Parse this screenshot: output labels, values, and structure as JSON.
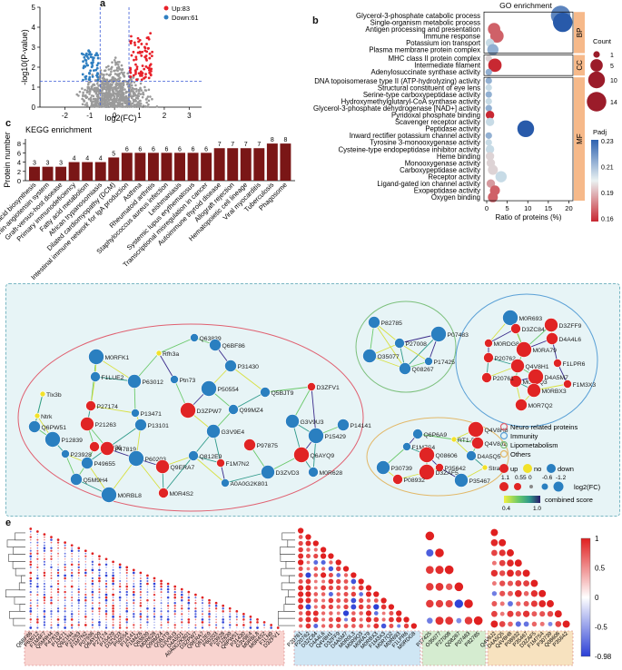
{
  "panel_letters": {
    "a": "a",
    "b": "b",
    "c": "c",
    "d": "d",
    "e": "e"
  },
  "colors": {
    "up": "#e8212a",
    "down": "#2f7fc1",
    "ns": "#9a9a9a",
    "bar": "#7a1616",
    "net_bg": "#e7f4f6",
    "neuro": "#e06070",
    "immunity": "#5aa0d6",
    "lipo": "#7cc07c",
    "others": "#e2b868",
    "up_node": "#e02424",
    "no_node": "#f2e22a",
    "down_node": "#2a7fc0"
  },
  "chart_data": [
    {
      "type": "scatter",
      "panel": "a",
      "xlabel": "log2(FC)",
      "ylabel": "-log10(P-value)",
      "xlim": [
        -3,
        3.5
      ],
      "ylim": [
        0,
        5
      ],
      "xticks": [
        -2,
        -1,
        0,
        1,
        2,
        3
      ],
      "yticks": [
        0,
        1,
        2,
        3,
        4,
        5
      ],
      "legend": [
        {
          "name": "Up:83",
          "color": "#e8212a"
        },
        {
          "name": "Down:61",
          "color": "#2f7fc1"
        }
      ],
      "thresholds": {
        "x": [
          -0.58,
          0.58
        ],
        "y": 1.3
      }
    },
    {
      "type": "bar",
      "panel": "c",
      "title": "KEGG enrichment",
      "ylabel": "Protein number",
      "ylim": [
        0,
        9
      ],
      "yticks": [
        0,
        2,
        4,
        6,
        8
      ],
      "categories": [
        "Fatty acid biosynthesis",
        "Renin-angiotensin system",
        "Graft-versus-host disease",
        "Primary immunodeficiency",
        "Fatty acid metabolism",
        "African trypanosomiasis",
        "Dilated cardiomyopathy (DCM)",
        "Intestinal immune network for IgA production",
        "Asthma",
        "Rheumatoid arthritis",
        "Staphylococcus aureus infection",
        "Leishmaniasis",
        "Systemic lupus erythematosus",
        "Transcriptional misregulation in cancer",
        "Autoimmune thyroid disease",
        "Allograft rejection",
        "Hematopoietic cell lineage",
        "Viral myocarditis",
        "Tuberculosis",
        "Phagosome"
      ],
      "values": [
        3,
        3,
        3,
        4,
        4,
        4,
        5,
        6,
        6,
        6,
        6,
        6,
        6,
        6,
        7,
        7,
        7,
        7,
        8,
        8
      ]
    },
    {
      "type": "scatter",
      "panel": "b",
      "title": "GO enrichment",
      "xlabel": "Ratio of proteins (%)",
      "xlim": [
        0,
        21
      ],
      "xticks": [
        0,
        5,
        10,
        15,
        20
      ],
      "size_legend": {
        "title": "Count",
        "values": [
          1,
          5,
          10,
          14
        ]
      },
      "color_legend": {
        "title": "Padj",
        "ticks": [
          0.23,
          0.21,
          0.19,
          0.16
        ]
      },
      "groups": [
        {
          "name": "BP",
          "terms": [
            {
              "term": "Glycerol-3-phosphate catabolic process",
              "ratio": 18.0,
              "count": 14,
              "padj": 0.22
            },
            {
              "term": "Single-organism metabolic process",
              "ratio": 18.5,
              "count": 14,
              "padj": 0.23
            },
            {
              "term": "Antigen processing and presentation",
              "ratio": 1.8,
              "count": 5,
              "padj": 0.17
            },
            {
              "term": "Immune response",
              "ratio": 2.5,
              "count": 6,
              "padj": 0.17
            },
            {
              "term": "Potassium ion transport",
              "ratio": 0.8,
              "count": 2,
              "padj": 0.2
            },
            {
              "term": "Plasma membrane protein complex",
              "ratio": 1.5,
              "count": 4,
              "padj": 0.21
            }
          ]
        },
        {
          "name": "CC",
          "terms": [
            {
              "term": "MHC class II protein complex",
              "ratio": 0.5,
              "count": 1,
              "padj": 0.19
            },
            {
              "term": "Intermediate filament",
              "ratio": 2.0,
              "count": 6,
              "padj": 0.16
            },
            {
              "term": "Adenylosuccinate synthase activity",
              "ratio": 0.5,
              "count": 1,
              "padj": 0.21
            }
          ]
        },
        {
          "name": "MF",
          "terms": [
            {
              "term": "DNA topoisomerase type II (ATP-hydrolyzing) activity",
              "ratio": 0.5,
              "count": 1,
              "padj": 0.21
            },
            {
              "term": "Structural constituent of eye lens",
              "ratio": 0.5,
              "count": 1,
              "padj": 0.2
            },
            {
              "term": "Serine-type carboxypeptidase activity",
              "ratio": 0.5,
              "count": 1,
              "padj": 0.21
            },
            {
              "term": "Hydroxymethylglutaryl-CoA synthase activity",
              "ratio": 0.5,
              "count": 1,
              "padj": 0.2
            },
            {
              "term": "Glycerol-3-phosphate dehydrogenase [NAD+] activity",
              "ratio": 0.5,
              "count": 1,
              "padj": 0.21
            },
            {
              "term": "Pyridoxal phosphate binding",
              "ratio": 0.8,
              "count": 2,
              "padj": 0.16
            },
            {
              "term": "Scavenger receptor activity",
              "ratio": 0.8,
              "count": 2,
              "padj": 0.2
            },
            {
              "term": "Peptidase activity",
              "ratio": 9.5,
              "count": 10,
              "padj": 0.23
            },
            {
              "term": "Inward rectifier potassium channel activity",
              "ratio": 0.5,
              "count": 1,
              "padj": 0.21
            },
            {
              "term": "Tyrosine 3-monooxygenase activity",
              "ratio": 0.5,
              "count": 1,
              "padj": 0.2
            },
            {
              "term": "Cysteine-type endopeptidase inhibitor activity",
              "ratio": 0.8,
              "count": 2,
              "padj": 0.2
            },
            {
              "term": "Heme binding",
              "ratio": 0.8,
              "count": 2,
              "padj": 0.19
            },
            {
              "term": "Monooxygenase activity",
              "ratio": 1.0,
              "count": 2,
              "padj": 0.19
            },
            {
              "term": "Carboxypeptidase activity",
              "ratio": 1.5,
              "count": 3,
              "padj": 0.19
            },
            {
              "term": "Receptor activity",
              "ratio": 3.5,
              "count": 4,
              "padj": 0.2
            },
            {
              "term": "Ligand-gated ion channel activity",
              "ratio": 1.0,
              "count": 2,
              "padj": 0.18
            },
            {
              "term": "Exopeptidase activity",
              "ratio": 2.0,
              "count": 3,
              "padj": 0.17
            },
            {
              "term": "Oxygen binding",
              "ratio": 1.5,
              "count": 3,
              "padj": 0.17
            }
          ]
        }
      ]
    },
    {
      "type": "heatmap",
      "panel": "e",
      "color_scale": {
        "ticks": [
          1,
          0.5,
          0,
          -0.5,
          -0.98
        ],
        "low": "#2b3fd6",
        "mid": "#ffffff",
        "high": "#e02020"
      },
      "blocks": [
        {
          "labels": [
            "Q6BF86",
            "P63012",
            "F1M4F7",
            "Q5M9H4",
            "P47819",
            "P13471",
            "Q9Z1N4",
            "P21263",
            "F1M7N2",
            "P07936",
            "Q6AYQ9",
            "P27174",
            "P15429",
            "D3ZVD3",
            "P50554",
            "P14141",
            "F1M4Z6",
            "Q63839",
            "M0R628",
            "Q99MZ4",
            "Q5BJT9",
            "G3V9U3",
            "D4A5D1",
            "A0A0G2K801",
            "D3ZPW7",
            "Q9ERA7",
            "Q812E9",
            "P60203",
            "P23928",
            "P12839",
            "Q6PW51",
            "P31430",
            "G3V9E4",
            "M0RBL8",
            "M0R4S2",
            "F1LN9",
            "D3ZFV1"
          ]
        },
        {
          "labels": [
            "P20761",
            "P20762",
            "D3ZC84",
            "D4A4L6",
            "Q4V8H1",
            "D3ZFF9",
            "D4A5M7",
            "M0R0L3",
            "M0R9Q3",
            "M0RA79",
            "M0RBX3",
            "F1M3X3",
            "M0R7Q2",
            "M0R693",
            "F1LPR6",
            "M0RDG8"
          ]
        },
        {
          "labels": [
            "P17425",
            "O35077",
            "P27008",
            "Q08267",
            "P07483",
            "P82785"
          ]
        },
        {
          "labels": [
            "Q4V8J2",
            "D4A5Q5",
            "Q4V8H8",
            "P08932",
            "P35467",
            "D3ZAF5",
            "F1M7S4",
            "P30739",
            "Q08606",
            "P35642"
          ]
        }
      ]
    }
  ],
  "network": {
    "legend": {
      "groups": [
        "Neuro related proteins",
        "Immunity",
        "Lipometabolism",
        "Others"
      ],
      "states": [
        "up",
        "no",
        "down"
      ],
      "fc_values": [
        "1.1",
        "0.55",
        "0",
        "-0.6",
        "-1.2"
      ],
      "fc_label": "log2(FC)",
      "score_ticks": [
        "0.4",
        "1.0"
      ],
      "score_label": "combined score"
    },
    "nodes": [
      {
        "id": "Q63839",
        "state": "down"
      },
      {
        "id": "Q6BF86",
        "state": "down"
      },
      {
        "id": "M0RFK1",
        "state": "down"
      },
      {
        "id": "F1LUE2",
        "state": "down"
      },
      {
        "id": "P63012",
        "state": "down"
      },
      {
        "id": "Ptn73",
        "state": "down"
      },
      {
        "id": "P31430",
        "state": "down"
      },
      {
        "id": "P50554",
        "state": "down"
      },
      {
        "id": "Q5BJT9",
        "state": "down"
      },
      {
        "id": "Tlx3b",
        "state": "no"
      },
      {
        "id": "Ntrk",
        "state": "no"
      },
      {
        "id": "Q6PW51",
        "state": "down"
      },
      {
        "id": "P12839",
        "state": "down"
      },
      {
        "id": "P27174",
        "state": "up"
      },
      {
        "id": "P21263",
        "state": "up"
      },
      {
        "id": "P13471",
        "state": "down"
      },
      {
        "id": "P13101",
        "state": "down"
      },
      {
        "id": "D3ZPW7",
        "state": "up"
      },
      {
        "id": "Q99MZ4",
        "state": "down"
      },
      {
        "id": "G3V9U3",
        "state": "down"
      },
      {
        "id": "D3ZFV1",
        "state": "up"
      },
      {
        "id": "P14141",
        "state": "down"
      },
      {
        "id": "P15429",
        "state": "down"
      },
      {
        "id": "P07936",
        "state": "up"
      },
      {
        "id": "P47819",
        "state": "up"
      },
      {
        "id": "P23928",
        "state": "down"
      },
      {
        "id": "P49655",
        "state": "down"
      },
      {
        "id": "P60203",
        "state": "down"
      },
      {
        "id": "Q812E9",
        "state": "down"
      },
      {
        "id": "Q9ERA7",
        "state": "up"
      },
      {
        "id": "F1M7N2",
        "state": "up"
      },
      {
        "id": "P97875",
        "state": "up"
      },
      {
        "id": "Q6AYQ9",
        "state": "up"
      },
      {
        "id": "M0R628",
        "state": "down"
      },
      {
        "id": "D3ZVD3",
        "state": "down"
      },
      {
        "id": "A0A0G2K801",
        "state": "down"
      },
      {
        "id": "Q5M9H4",
        "state": "down"
      },
      {
        "id": "M0RBL8",
        "state": "down"
      },
      {
        "id": "M0R4S2",
        "state": "up"
      },
      {
        "id": "G3V9E4",
        "state": "down"
      },
      {
        "id": "Rfh3a",
        "state": "no"
      },
      {
        "id": "P82785",
        "state": "down"
      },
      {
        "id": "P07483",
        "state": "down"
      },
      {
        "id": "P27008",
        "state": "down"
      },
      {
        "id": "O35077",
        "state": "down"
      },
      {
        "id": "P17425",
        "state": "down"
      },
      {
        "id": "Q08267",
        "state": "down"
      },
      {
        "id": "M0R693",
        "state": "down"
      },
      {
        "id": "D3ZC84",
        "state": "up"
      },
      {
        "id": "D3ZFF9",
        "state": "up"
      },
      {
        "id": "M0RDG8",
        "state": "up"
      },
      {
        "id": "D4A4L6",
        "state": "up"
      },
      {
        "id": "M0RA79",
        "state": "up"
      },
      {
        "id": "P20762",
        "state": "up"
      },
      {
        "id": "Q4V8H1",
        "state": "up"
      },
      {
        "id": "F1LPR6",
        "state": "up"
      },
      {
        "id": "M0R9Q3",
        "state": "up"
      },
      {
        "id": "D4A5M7",
        "state": "up"
      },
      {
        "id": "P20761",
        "state": "up"
      },
      {
        "id": "M0RBX3",
        "state": "up"
      },
      {
        "id": "F1M3X3",
        "state": "up"
      },
      {
        "id": "M0R7Q2",
        "state": "up"
      },
      {
        "id": "Q4V8H8",
        "state": "up"
      },
      {
        "id": "Q6P6A9",
        "state": "down"
      },
      {
        "id": "RT1-Bb",
        "state": "no"
      },
      {
        "id": "F1M7S4",
        "state": "down"
      },
      {
        "id": "Q4V8J2",
        "state": "up"
      },
      {
        "id": "Q08606",
        "state": "up"
      },
      {
        "id": "D4A5Q5",
        "state": "down"
      },
      {
        "id": "P30739",
        "state": "down"
      },
      {
        "id": "P35642",
        "state": "up"
      },
      {
        "id": "Strada",
        "state": "no"
      },
      {
        "id": "D3ZAF5",
        "state": "up"
      },
      {
        "id": "P08932",
        "state": "up"
      },
      {
        "id": "P35467",
        "state": "down"
      }
    ]
  }
}
